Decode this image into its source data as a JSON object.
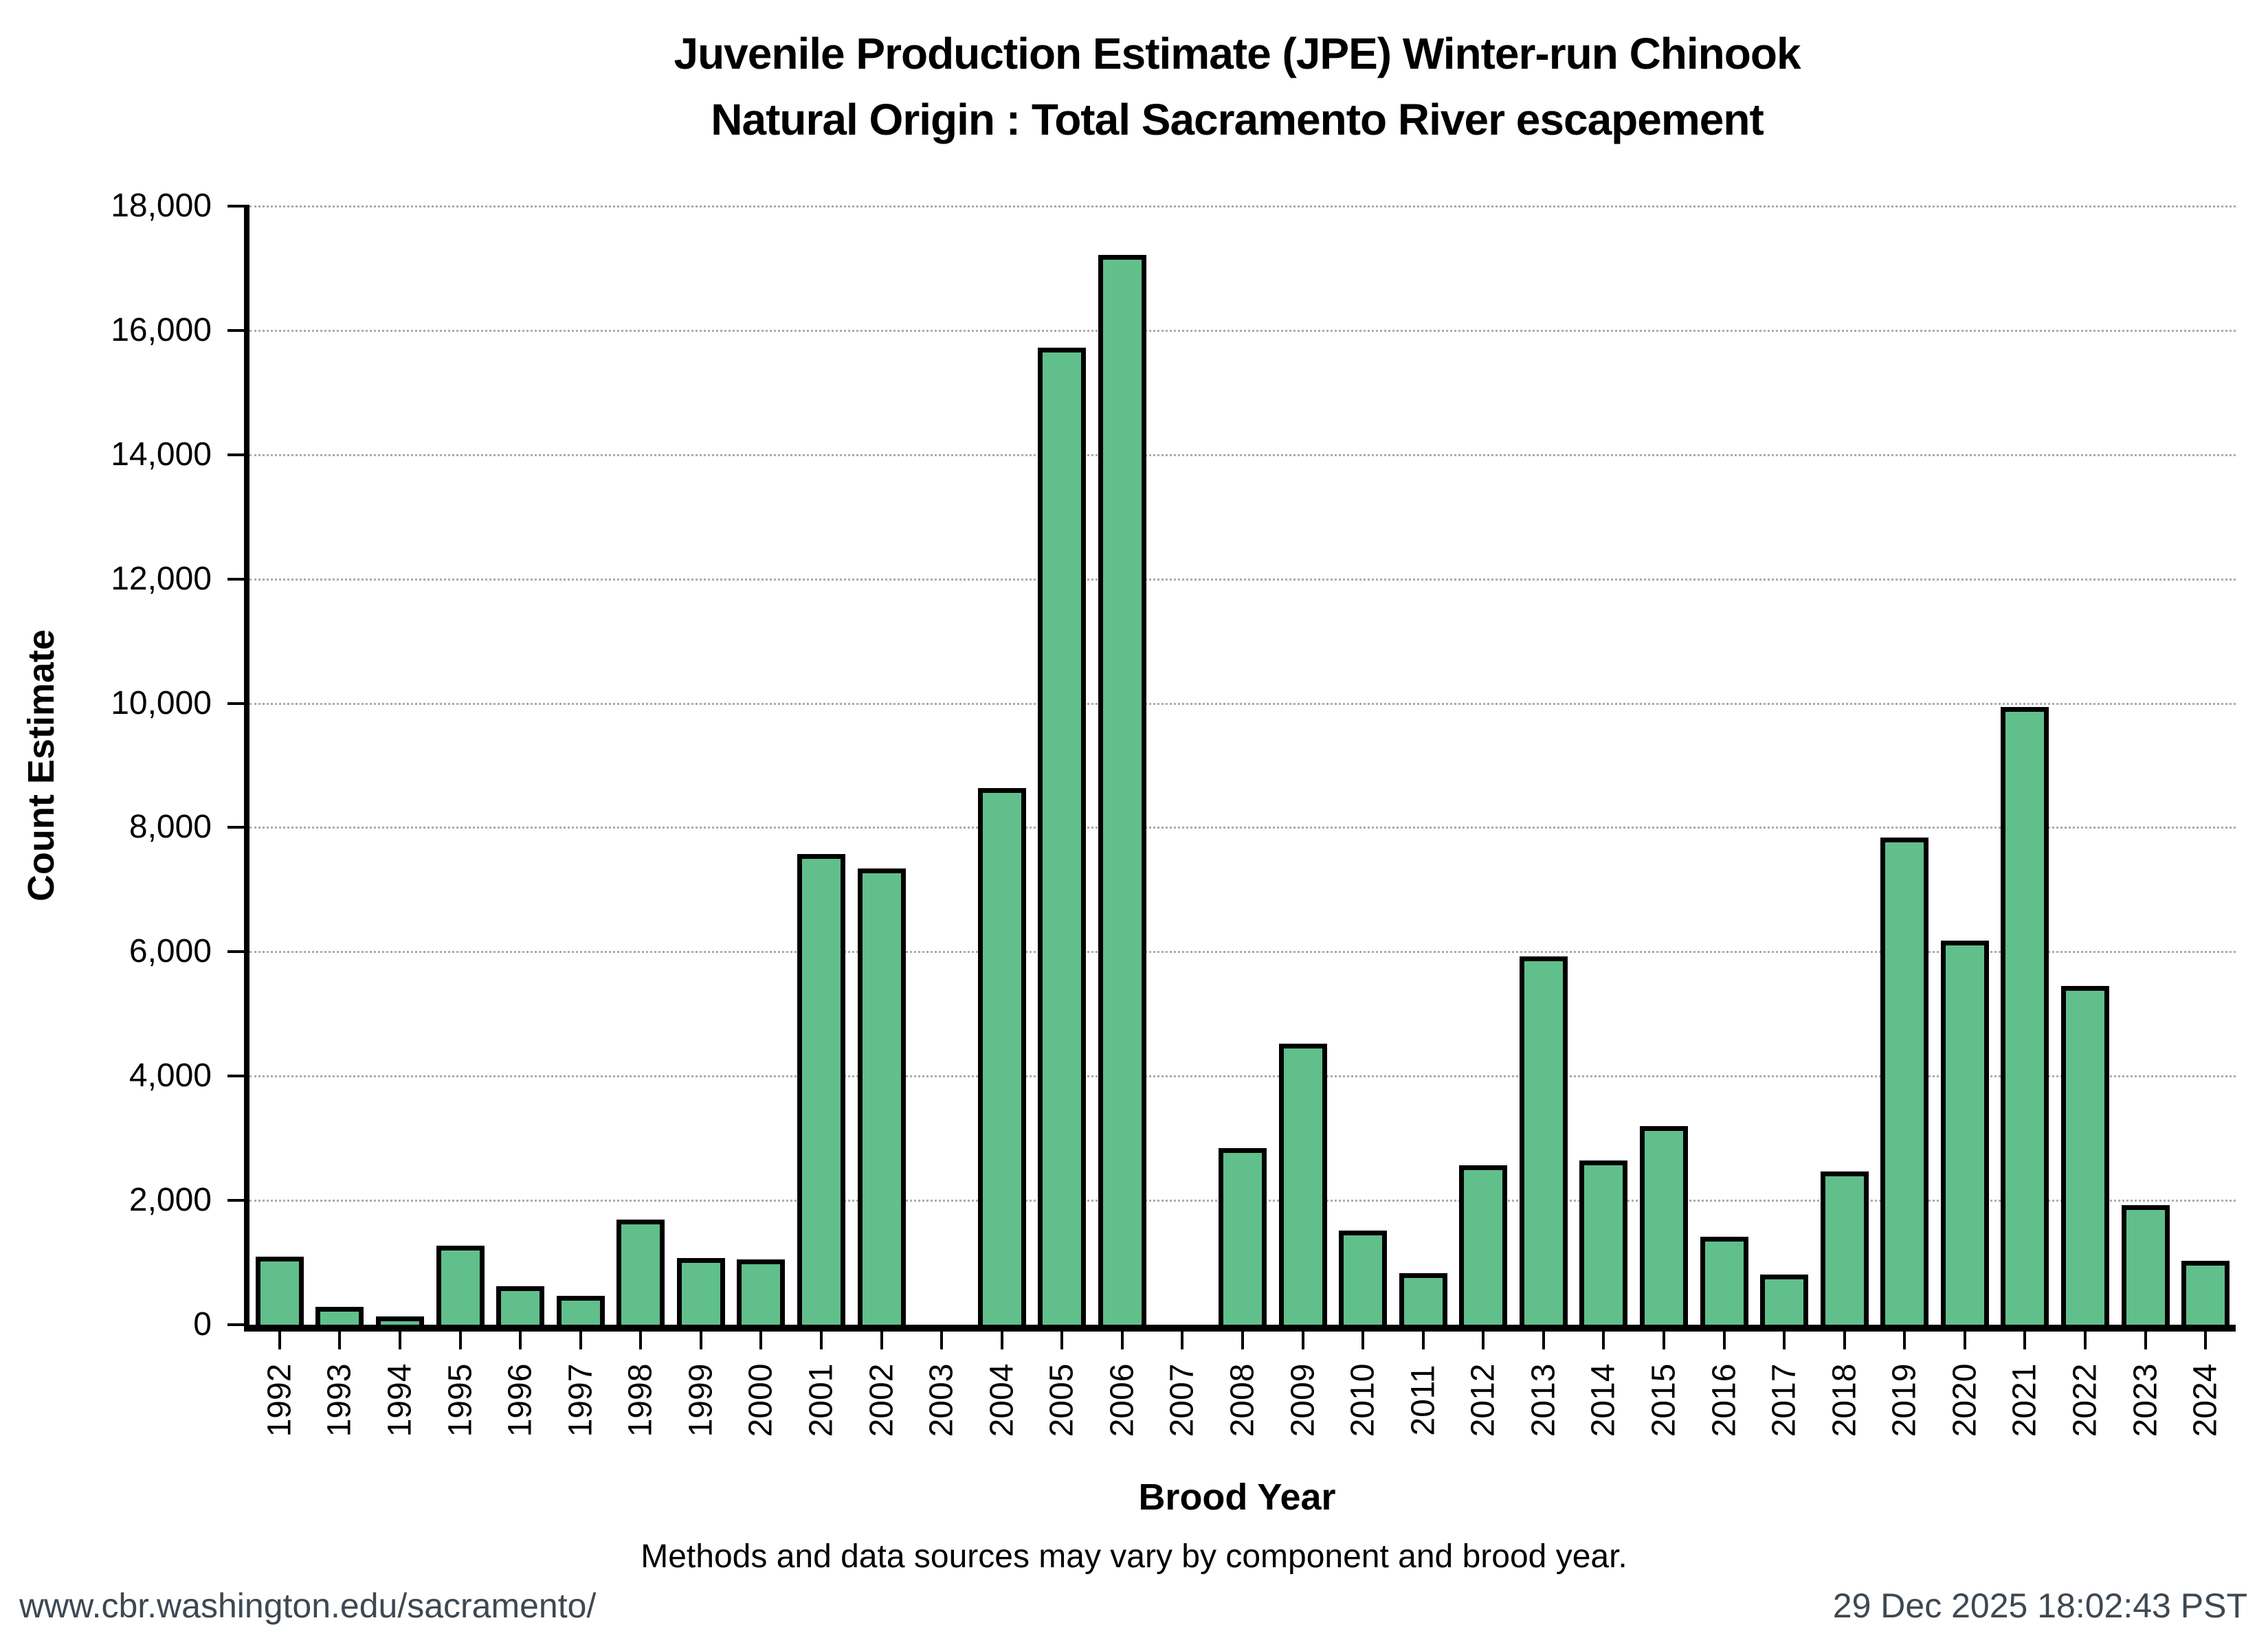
{
  "title": {
    "line1": "Juvenile Production Estimate (JPE) Winter-run Chinook",
    "line2": "Natural Origin : Total Sacramento River escapement"
  },
  "caption": "Methods and data sources may vary by component and brood year.",
  "footer": {
    "url": "www.cbr.washington.edu/sacramento/",
    "timestamp": "29 Dec 2025 18:02:43 PST"
  },
  "colors": {
    "bar_fill": "#61bf8c",
    "bar_border": "#000000",
    "gridline": "#ababab",
    "axis": "#000000",
    "footer_text": "#3d4852"
  },
  "chart_data": {
    "type": "bar",
    "title": "Juvenile Production Estimate (JPE) Winter-run Chinook — Natural Origin : Total Sacramento River escapement",
    "xlabel": "Brood Year",
    "ylabel": "Count Estimate",
    "categories": [
      "1992",
      "1993",
      "1994",
      "1995",
      "1996",
      "1997",
      "1998",
      "1999",
      "2000",
      "2001",
      "2002",
      "2003",
      "2004",
      "2005",
      "2006",
      "2007",
      "2008",
      "2009",
      "2010",
      "2011",
      "2012",
      "2013",
      "2014",
      "2015",
      "2016",
      "2017",
      "2018",
      "2019",
      "2020",
      "2021",
      "2022",
      "2023",
      "2024"
    ],
    "values": [
      1100,
      290,
      130,
      1270,
      620,
      460,
      1690,
      1070,
      1050,
      7570,
      7340,
      0,
      8640,
      15720,
      17220,
      0,
      2840,
      4520,
      1520,
      830,
      2570,
      5930,
      2640,
      3190,
      1410,
      810,
      2470,
      7840,
      6180,
      9940,
      5450,
      1920,
      1030
    ],
    "ylim": [
      0,
      18000
    ],
    "ytick_step": 2000,
    "ytick_labels": [
      "0",
      "2,000",
      "4,000",
      "6,000",
      "8,000",
      "10,000",
      "12,000",
      "14,000",
      "16,000",
      "18,000"
    ],
    "grid": "horizontal-dotted",
    "legend": "none"
  }
}
